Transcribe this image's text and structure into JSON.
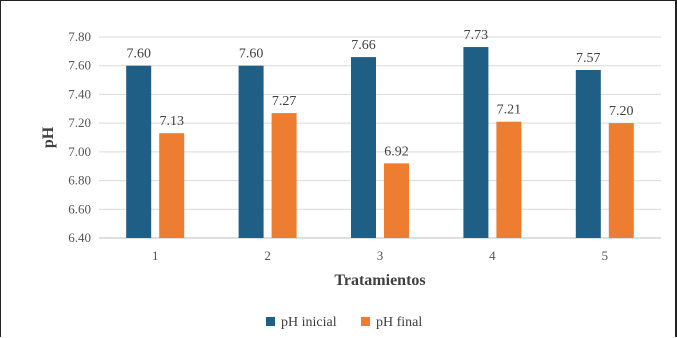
{
  "chart_data": {
    "type": "bar",
    "categories": [
      "1",
      "2",
      "3",
      "4",
      "5"
    ],
    "series": [
      {
        "name": "pH inicial",
        "color": "#1f5f86",
        "values": [
          7.6,
          7.6,
          7.66,
          7.73,
          7.57
        ]
      },
      {
        "name": "pH final",
        "color": "#ed7d31",
        "values": [
          7.13,
          7.27,
          6.92,
          7.21,
          7.2
        ]
      }
    ],
    "data_labels": [
      [
        "7.60",
        "7.60",
        "7.66",
        "7.73",
        "7.57"
      ],
      [
        "7.13",
        "7.27",
        "6.92",
        "7.21",
        "7.20"
      ]
    ],
    "xlabel": "Tratamientos",
    "ylabel": "pH",
    "ylim": [
      6.4,
      7.8
    ],
    "yticks": [
      "6.40",
      "6.60",
      "6.80",
      "7.00",
      "7.20",
      "7.40",
      "7.60",
      "7.80"
    ],
    "grid": true,
    "legend": "bottom"
  }
}
